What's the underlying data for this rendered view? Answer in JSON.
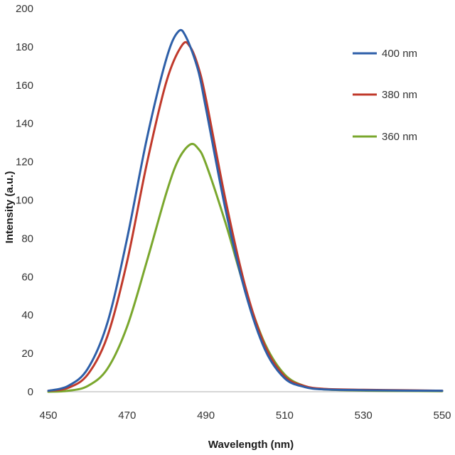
{
  "chart_data": {
    "type": "line",
    "title": "",
    "xlabel": "Wavelength (nm)",
    "ylabel": "Intensity (a.u.)",
    "xlim": [
      450,
      550
    ],
    "ylim": [
      0,
      200
    ],
    "x_ticks": [
      450,
      470,
      490,
      510,
      530,
      550
    ],
    "y_ticks": [
      0,
      20,
      40,
      60,
      80,
      100,
      120,
      140,
      160,
      180,
      200
    ],
    "grid": false,
    "legend_position": "top-right",
    "series": [
      {
        "name": "400 nm",
        "color": "#2e5fa8",
        "x": [
          450,
          455,
          460,
          465,
          470,
          475,
          480,
          483,
          485,
          488,
          490,
          495,
          500,
          505,
          510,
          515,
          520,
          530,
          540,
          550
        ],
        "values": [
          0.5,
          3,
          12,
          36,
          80,
          132,
          174,
          188,
          185,
          168,
          148,
          95,
          52,
          22,
          7,
          2.5,
          1.2,
          0.8,
          0.6,
          0.5
        ]
      },
      {
        "name": "380 nm",
        "color": "#c0392b",
        "x": [
          450,
          455,
          460,
          465,
          470,
          475,
          480,
          484,
          486,
          488,
          490,
          495,
          500,
          505,
          510,
          515,
          520,
          530,
          540,
          550
        ],
        "values": [
          0.5,
          2,
          9,
          29,
          68,
          119,
          162,
          181,
          180,
          170,
          153,
          100,
          55,
          24,
          8,
          3,
          1.5,
          1,
          0.8,
          0.5
        ]
      },
      {
        "name": "360 nm",
        "color": "#7aa72d",
        "x": [
          450,
          455,
          460,
          465,
          470,
          475,
          480,
          483,
          486,
          488,
          490,
          495,
          500,
          505,
          510,
          515,
          520,
          530,
          540,
          550
        ],
        "values": [
          0,
          0.5,
          3,
          12,
          34,
          68,
          104,
          121,
          129,
          127,
          119,
          88,
          53,
          25,
          9,
          3,
          1.2,
          0.6,
          0.4,
          0.3
        ]
      }
    ]
  }
}
